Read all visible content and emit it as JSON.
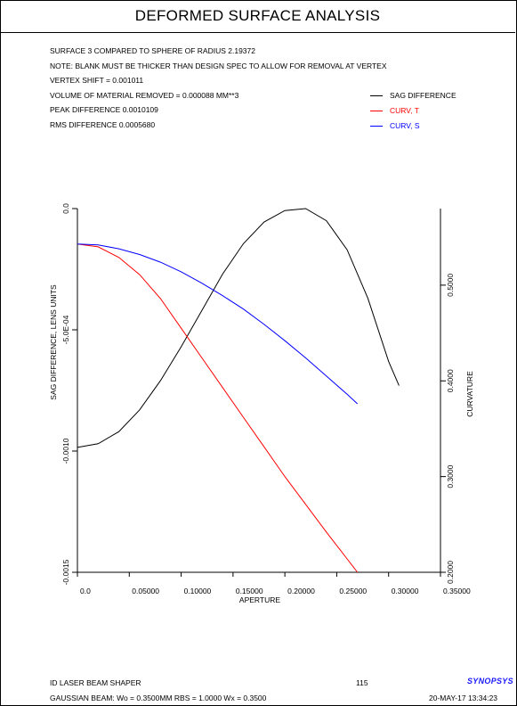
{
  "page": {
    "title": "DEFORMED SURFACE ANALYSIS",
    "info_lines": [
      "SURFACE   3 COMPARED TO SPHERE OF RADIUS    2.19372",
      "NOTE: BLANK MUST BE THICKER THAN DESIGN SPEC TO ALLOW FOR REMOVAL AT VERTEX",
      "VERTEX SHIFT =   0.001011",
      "VOLUME OF MATERIAL REMOVED =   0.000088 MM**3",
      "PEAK DIFFERENCE   0.0010109",
      "RMS DIFFERENCE    0.0005680"
    ],
    "footer": {
      "left_line1": "ID LASER BEAM SHAPER",
      "left_line2": "GAUSSIAN BEAM: Wo =  0.3500MM   RBS =  1.0000 Wx =  0.3500",
      "page_number": "115",
      "brand": "SYNOPSYS",
      "datetime": "20-MAY-17  13:34:23"
    }
  },
  "chart_data": {
    "type": "line",
    "xlabel": "APERTURE",
    "ylabel_left": "SAG DIFFERENCE, LENS UNITS",
    "ylabel_right": "CURVATURE",
    "xlim": [
      0,
      0.35
    ],
    "x_ticks": [
      "0.0",
      "0.05000",
      "0.10000",
      "0.15000",
      "0.20000",
      "0.25000",
      "0.30000",
      "0.35000"
    ],
    "x_tick_values": [
      0,
      0.05,
      0.1,
      0.15,
      0.2,
      0.25,
      0.3,
      0.35
    ],
    "left_ylim": [
      -0.0015,
      0
    ],
    "left_ticks": [
      "0.0",
      "-5.0E-04",
      "-0.0010",
      "-0.0015"
    ],
    "left_tick_values": [
      0,
      -0.0005,
      -0.001,
      -0.0015
    ],
    "right_ylim": [
      0.2,
      0.58
    ],
    "right_ticks": [
      "0.2000",
      "0.3000",
      "0.4000",
      "0.5000"
    ],
    "right_tick_values": [
      0.2,
      0.3,
      0.4,
      0.5
    ],
    "legend_position": "top-right",
    "series": [
      {
        "name": "SAG DIFFERENCE",
        "axis": "left",
        "color": "#000000",
        "x": [
          0,
          0.02,
          0.04,
          0.06,
          0.08,
          0.1,
          0.12,
          0.14,
          0.16,
          0.18,
          0.2,
          0.22,
          0.24,
          0.26,
          0.28,
          0.3,
          0.31
        ],
        "y": [
          -0.000985,
          -0.00097,
          -0.00092,
          -0.00083,
          -0.00071,
          -0.00057,
          -0.00042,
          -0.00027,
          -0.000145,
          -5.5e-05,
          -8e-06,
          0,
          -5e-05,
          -0.00017,
          -0.00037,
          -0.00063,
          -0.00073
        ]
      },
      {
        "name": "CURV, T",
        "axis": "right",
        "color": "#ff0000",
        "x": [
          0,
          0.02,
          0.04,
          0.06,
          0.08,
          0.1,
          0.12,
          0.14,
          0.16,
          0.18,
          0.2,
          0.22,
          0.24,
          0.26,
          0.27
        ],
        "y": [
          0.543,
          0.54,
          0.529,
          0.511,
          0.486,
          0.455,
          0.424,
          0.393,
          0.362,
          0.331,
          0.3,
          0.271,
          0.242,
          0.214,
          0.2
        ]
      },
      {
        "name": "CURV, S",
        "axis": "right",
        "color": "#0000ff",
        "x": [
          0,
          0.02,
          0.04,
          0.06,
          0.08,
          0.1,
          0.12,
          0.14,
          0.16,
          0.18,
          0.2,
          0.22,
          0.24,
          0.26,
          0.27
        ],
        "y": [
          0.543,
          0.542,
          0.538,
          0.532,
          0.524,
          0.514,
          0.502,
          0.489,
          0.475,
          0.459,
          0.442,
          0.424,
          0.405,
          0.386,
          0.376
        ]
      }
    ]
  }
}
